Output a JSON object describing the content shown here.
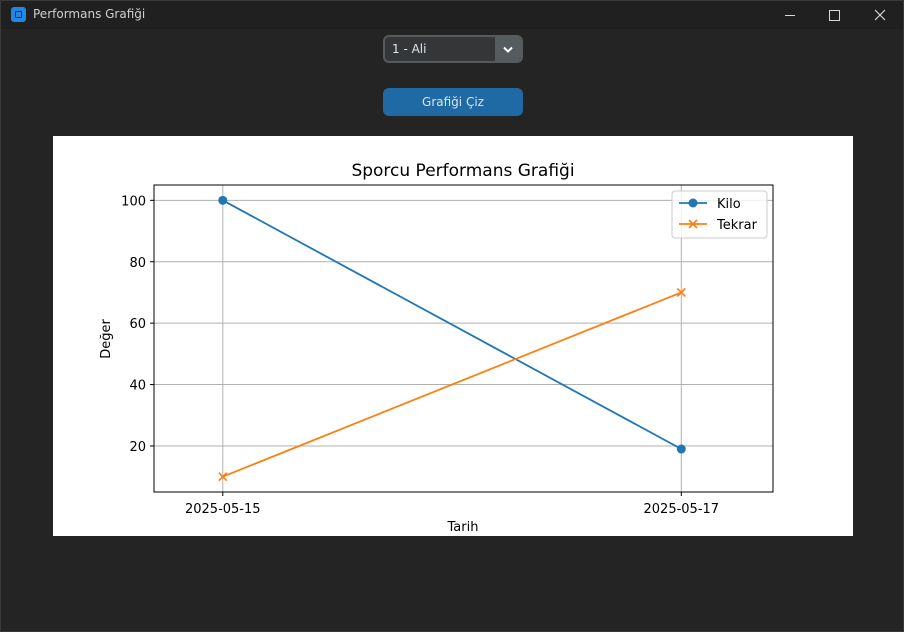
{
  "window": {
    "title": "Performans Grafiği"
  },
  "controls": {
    "athlete_selected": "1 - Ali",
    "draw_button_label": "Grafiği Çiz"
  },
  "colors": {
    "kilo": "#1f77b4",
    "tekrar": "#ff7f0e",
    "button": "#1f6aa5"
  },
  "chart_data": {
    "type": "line",
    "title": "Sporcu Performans Grafiği",
    "xlabel": "Tarih",
    "ylabel": "Değer",
    "x": [
      "2025-05-15",
      "2025-05-17"
    ],
    "x_numeric_days": [
      15,
      17
    ],
    "xlim_days": [
      14.7,
      17.4
    ],
    "ylim": [
      5,
      105
    ],
    "yticks": [
      20,
      40,
      60,
      80,
      100
    ],
    "grid": true,
    "legend_position": "top-right",
    "series": [
      {
        "name": "Kilo",
        "values": [
          100,
          19
        ],
        "marker": "circle",
        "color": "#1f77b4"
      },
      {
        "name": "Tekrar",
        "values": [
          10,
          70
        ],
        "marker": "x",
        "color": "#ff7f0e"
      }
    ]
  }
}
